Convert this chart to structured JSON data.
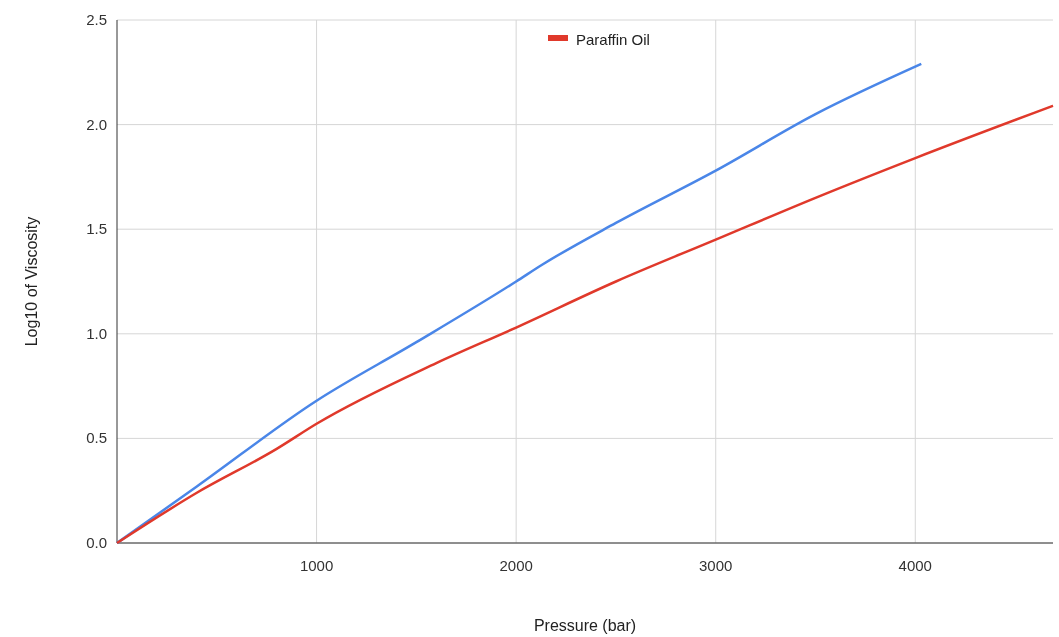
{
  "chart_data": {
    "type": "line",
    "xlabel": "Pressure (bar)",
    "ylabel": "Log10 of Viscosity",
    "xlim": [
      0,
      4690
    ],
    "xticks": [
      1000,
      2000,
      3000,
      4000
    ],
    "ylim": [
      0,
      2.5
    ],
    "yticks": [
      {
        "value": 0,
        "label": "0.0"
      },
      {
        "value": 0.5,
        "label": "0.5"
      },
      {
        "value": 1,
        "label": "1.0"
      },
      {
        "value": 1.5,
        "label": "1.5"
      },
      {
        "value": 2,
        "label": "2.0"
      },
      {
        "value": 2.5,
        "label": "2.5"
      }
    ],
    "grid": true,
    "legend": "top",
    "marker": "none",
    "line_style": "solid",
    "series": [
      {
        "color": "#4a86e8",
        "x": [
          0,
          400,
          1000,
          1500,
          2000,
          2130,
          2500,
          3000,
          3500,
          4030
        ],
        "values": [
          0,
          0.27,
          0.68,
          0.96,
          1.25,
          1.33,
          1.53,
          1.78,
          2.05,
          2.29
        ]
      },
      {
        "name": "Paraffin Oil",
        "color": "#e0392b",
        "x": [
          0,
          400,
          800,
          1000,
          1600,
          2000,
          2500,
          3000,
          3500,
          4000,
          4690
        ],
        "values": [
          0,
          0.24,
          0.45,
          0.57,
          0.86,
          1.03,
          1.25,
          1.45,
          1.65,
          1.84,
          2.09
        ]
      }
    ]
  }
}
